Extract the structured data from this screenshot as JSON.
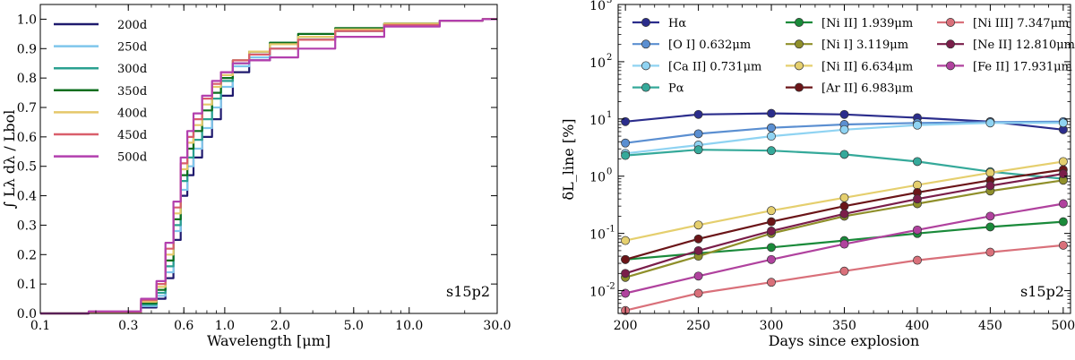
{
  "chart_data": [
    {
      "type": "line",
      "title": "",
      "xlabel": "Wavelength [μm]",
      "ylabel": "∫ Lλ dλ / Lbol",
      "xscale": "log",
      "xlim": [
        0.1,
        30.0
      ],
      "ylim": [
        0.0,
        1.05
      ],
      "xticks": [
        0.1,
        0.3,
        0.6,
        1.0,
        2.0,
        5.0,
        10.0,
        30.0
      ],
      "xtick_labels": [
        "0.1",
        "0.3",
        "0.6",
        "1.0",
        "2.0",
        "5.0",
        "10.0",
        "30.0"
      ],
      "yticks": [
        0.0,
        0.1,
        0.2,
        0.3,
        0.4,
        0.5,
        0.6,
        0.7,
        0.8,
        0.9,
        1.0
      ],
      "ytick_labels": [
        "0.0",
        "0.1",
        "0.2",
        "0.3",
        "0.4",
        "0.5",
        "0.6",
        "0.7",
        "0.8",
        "0.9",
        "1.0"
      ],
      "legend_position": "top-left",
      "annotation": "s15p2",
      "series": [
        {
          "name": "200d",
          "color": "#1f1a6e",
          "x": [
            0.1,
            0.3,
            0.4,
            0.45,
            0.5,
            0.55,
            0.6,
            0.65,
            0.7,
            0.8,
            0.9,
            1.0,
            1.2,
            1.5,
            2.0,
            3.0,
            5.0,
            10.0,
            20.0,
            30.0
          ],
          "y": [
            0.0,
            0.002,
            0.02,
            0.05,
            0.12,
            0.25,
            0.4,
            0.47,
            0.53,
            0.6,
            0.66,
            0.74,
            0.82,
            0.86,
            0.9,
            0.93,
            0.96,
            0.985,
            0.995,
            1.0
          ]
        },
        {
          "name": "250d",
          "color": "#7fc6ec",
          "x": [
            0.1,
            0.3,
            0.4,
            0.45,
            0.5,
            0.55,
            0.6,
            0.65,
            0.7,
            0.8,
            0.9,
            1.0,
            1.2,
            1.5,
            2.0,
            3.0,
            5.0,
            10.0,
            20.0,
            30.0
          ],
          "y": [
            0.0,
            0.003,
            0.025,
            0.06,
            0.14,
            0.28,
            0.42,
            0.5,
            0.56,
            0.63,
            0.7,
            0.77,
            0.84,
            0.87,
            0.9,
            0.93,
            0.96,
            0.985,
            0.995,
            1.0
          ]
        },
        {
          "name": "300d",
          "color": "#2aa090",
          "x": [
            0.1,
            0.3,
            0.4,
            0.45,
            0.5,
            0.55,
            0.6,
            0.65,
            0.7,
            0.8,
            0.9,
            1.0,
            1.2,
            1.5,
            2.0,
            3.0,
            5.0,
            10.0,
            20.0,
            30.0
          ],
          "y": [
            0.0,
            0.003,
            0.03,
            0.07,
            0.16,
            0.3,
            0.45,
            0.53,
            0.59,
            0.66,
            0.73,
            0.79,
            0.85,
            0.88,
            0.92,
            0.94,
            0.965,
            0.985,
            0.995,
            1.0
          ]
        },
        {
          "name": "350d",
          "color": "#0b6e1e",
          "x": [
            0.1,
            0.3,
            0.4,
            0.45,
            0.5,
            0.55,
            0.6,
            0.65,
            0.7,
            0.8,
            0.9,
            1.0,
            1.2,
            1.5,
            2.0,
            3.0,
            5.0,
            10.0,
            20.0,
            30.0
          ],
          "y": [
            0.0,
            0.004,
            0.035,
            0.08,
            0.18,
            0.32,
            0.47,
            0.56,
            0.62,
            0.69,
            0.75,
            0.8,
            0.86,
            0.89,
            0.92,
            0.95,
            0.97,
            0.985,
            0.995,
            1.0
          ]
        },
        {
          "name": "400d",
          "color": "#e5c86a",
          "x": [
            0.1,
            0.3,
            0.4,
            0.45,
            0.5,
            0.55,
            0.6,
            0.65,
            0.7,
            0.8,
            0.9,
            1.0,
            1.2,
            1.5,
            2.0,
            3.0,
            5.0,
            10.0,
            20.0,
            30.0
          ],
          "y": [
            0.0,
            0.005,
            0.04,
            0.09,
            0.2,
            0.34,
            0.49,
            0.58,
            0.64,
            0.71,
            0.77,
            0.81,
            0.86,
            0.89,
            0.915,
            0.94,
            0.965,
            0.985,
            0.995,
            1.0
          ]
        },
        {
          "name": "450d",
          "color": "#d95f6b",
          "x": [
            0.1,
            0.3,
            0.4,
            0.45,
            0.5,
            0.55,
            0.6,
            0.65,
            0.7,
            0.8,
            0.9,
            1.0,
            1.2,
            1.5,
            2.0,
            3.0,
            5.0,
            10.0,
            20.0,
            30.0
          ],
          "y": [
            0.0,
            0.006,
            0.045,
            0.1,
            0.22,
            0.36,
            0.51,
            0.6,
            0.66,
            0.73,
            0.78,
            0.82,
            0.86,
            0.88,
            0.9,
            0.93,
            0.96,
            0.98,
            0.995,
            1.0
          ]
        },
        {
          "name": "500d",
          "color": "#b23fae",
          "x": [
            0.1,
            0.3,
            0.4,
            0.45,
            0.5,
            0.55,
            0.6,
            0.65,
            0.7,
            0.8,
            0.9,
            1.0,
            1.2,
            1.5,
            2.0,
            3.0,
            5.0,
            10.0,
            20.0,
            30.0
          ],
          "y": [
            0.0,
            0.007,
            0.05,
            0.11,
            0.24,
            0.38,
            0.53,
            0.62,
            0.68,
            0.74,
            0.79,
            0.82,
            0.85,
            0.86,
            0.87,
            0.9,
            0.94,
            0.975,
            0.995,
            1.0
          ]
        }
      ]
    },
    {
      "type": "line",
      "title": "",
      "xlabel": "Days since explosion",
      "ylabel": "δL_line [%]",
      "yscale": "log",
      "xlim": [
        195,
        505
      ],
      "ylim": [
        0.004,
        1000
      ],
      "xticks": [
        200,
        250,
        300,
        350,
        400,
        450,
        500
      ],
      "xtick_labels": [
        "200",
        "250",
        "300",
        "350",
        "400",
        "450",
        "500"
      ],
      "yticks": [
        0.01,
        0.1,
        1,
        10,
        100,
        1000
      ],
      "ytick_labels": [
        "10",
        "10",
        "10",
        "10",
        "10",
        "10"
      ],
      "ytick_exponents": [
        "-2",
        "-1",
        "0",
        "1",
        "2",
        "3"
      ],
      "legend_position": "top",
      "annotation": "s15p2",
      "x": [
        200,
        250,
        300,
        350,
        400,
        450,
        500
      ],
      "series": [
        {
          "name": "Hα",
          "color": "#2b2d8c",
          "values": [
            9.0,
            12.0,
            12.5,
            12.0,
            10.5,
            9.0,
            6.5
          ]
        },
        {
          "name": "[O I] 0.632μm",
          "color": "#5b8fd1",
          "values": [
            3.8,
            5.5,
            7.0,
            8.0,
            8.5,
            8.8,
            9.0
          ]
        },
        {
          "name": "[Ca II] 0.731μm",
          "color": "#8fd3f2",
          "values": [
            2.5,
            3.5,
            5.0,
            6.5,
            7.8,
            8.5,
            8.5
          ]
        },
        {
          "name": "Pα",
          "color": "#35a99a",
          "values": [
            2.3,
            2.9,
            2.8,
            2.4,
            1.8,
            1.2,
            0.9
          ]
        },
        {
          "name": "[Ni II] 1.939μm",
          "color": "#1a8a3a",
          "values": [
            0.035,
            0.045,
            0.057,
            0.075,
            0.1,
            0.13,
            0.16
          ]
        },
        {
          "name": "[Ni I] 3.119μm",
          "color": "#8f8f2a",
          "values": [
            0.017,
            0.04,
            0.1,
            0.2,
            0.33,
            0.55,
            0.85
          ]
        },
        {
          "name": "[Ni II] 6.634μm",
          "color": "#e5cf6e",
          "values": [
            0.075,
            0.14,
            0.25,
            0.42,
            0.7,
            1.15,
            1.8
          ]
        },
        {
          "name": "[Ar II] 6.983μm",
          "color": "#6b1518",
          "values": [
            0.035,
            0.08,
            0.16,
            0.3,
            0.52,
            0.85,
            1.3
          ]
        },
        {
          "name": "[Ni III] 7.347μm",
          "color": "#d9707a",
          "values": [
            0.0045,
            0.009,
            0.014,
            0.022,
            0.034,
            0.047,
            0.062
          ]
        },
        {
          "name": "[Ne II] 12.810μm",
          "color": "#7a1e4a",
          "values": [
            0.02,
            0.05,
            0.11,
            0.22,
            0.4,
            0.68,
            1.1
          ]
        },
        {
          "name": "[Fe II] 17.931μm",
          "color": "#b0429e",
          "values": [
            0.009,
            0.018,
            0.035,
            0.065,
            0.115,
            0.2,
            0.33
          ]
        }
      ]
    }
  ]
}
